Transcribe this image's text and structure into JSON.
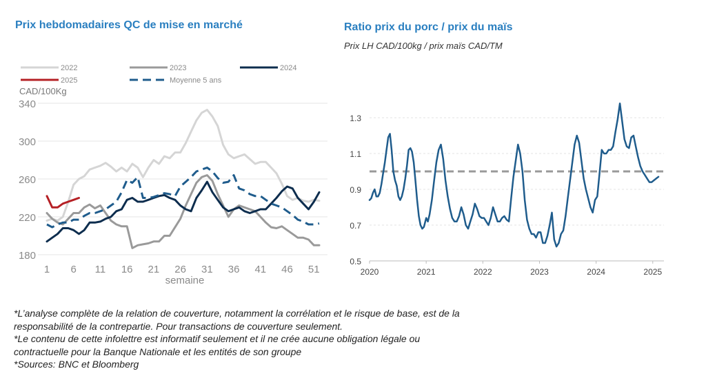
{
  "left": {
    "title": "Prix hebdomadaires QC de mise en marché",
    "chart_data": {
      "type": "line",
      "title": "Prix hebdomadaires QC de mise en marché",
      "ylabel": "CAD/100Kg",
      "xlabel": "semaine",
      "ylim": [
        180,
        340
      ],
      "yticks": [
        180,
        220,
        260,
        300,
        340
      ],
      "xlim": [
        1,
        52
      ],
      "xticks": [
        1,
        6,
        11,
        16,
        21,
        26,
        31,
        36,
        41,
        46,
        51
      ],
      "grid": true,
      "legend_position": "top",
      "series": [
        {
          "name": "2022",
          "color": "#d5d5d5",
          "style": "solid",
          "x": [
            1,
            2,
            3,
            4,
            5,
            6,
            7,
            8,
            9,
            10,
            11,
            12,
            13,
            14,
            15,
            16,
            17,
            18,
            19,
            20,
            21,
            22,
            23,
            24,
            25,
            26,
            27,
            28,
            29,
            30,
            31,
            32,
            33,
            34,
            35,
            36,
            37,
            38,
            39,
            40,
            41,
            42,
            43,
            44,
            45,
            46,
            47,
            48,
            49,
            50,
            51,
            52
          ],
          "values": [
            216,
            218,
            216,
            220,
            236,
            254,
            260,
            263,
            270,
            272,
            274,
            277,
            273,
            268,
            272,
            268,
            276,
            272,
            262,
            272,
            280,
            276,
            284,
            282,
            288,
            288,
            298,
            310,
            322,
            330,
            333,
            326,
            316,
            296,
            286,
            282,
            284,
            286,
            281,
            276,
            278,
            278,
            272,
            266,
            255,
            242,
            238,
            240,
            237,
            236,
            238,
            237
          ]
        },
        {
          "name": "2023",
          "color": "#9a9a9a",
          "style": "solid",
          "x": [
            1,
            2,
            3,
            4,
            5,
            6,
            7,
            8,
            9,
            10,
            11,
            12,
            13,
            14,
            15,
            16,
            17,
            18,
            19,
            20,
            21,
            22,
            23,
            24,
            25,
            26,
            27,
            28,
            29,
            30,
            31,
            32,
            33,
            34,
            35,
            36,
            37,
            38,
            39,
            40,
            41,
            42,
            43,
            44,
            45,
            46,
            47,
            48,
            49,
            50,
            51,
            52
          ],
          "values": [
            224,
            218,
            214,
            212,
            218,
            224,
            224,
            230,
            233,
            229,
            232,
            224,
            216,
            212,
            210,
            210,
            187,
            190,
            191,
            192,
            194,
            194,
            200,
            200,
            209,
            218,
            232,
            244,
            256,
            262,
            264,
            258,
            244,
            232,
            220,
            228,
            232,
            230,
            228,
            226,
            220,
            214,
            209,
            208,
            210,
            206,
            202,
            198,
            198,
            196,
            190,
            190
          ]
        },
        {
          "name": "2024",
          "color": "#0d2d4e",
          "style": "solid",
          "x": [
            1,
            2,
            3,
            4,
            5,
            6,
            7,
            8,
            9,
            10,
            11,
            12,
            13,
            14,
            15,
            16,
            17,
            18,
            19,
            20,
            21,
            22,
            23,
            24,
            25,
            26,
            27,
            28,
            29,
            30,
            31,
            32,
            33,
            34,
            35,
            36,
            37,
            38,
            39,
            40,
            41,
            42,
            43,
            44,
            45,
            46,
            47,
            48,
            49,
            50,
            51,
            52
          ],
          "values": [
            194,
            198,
            202,
            208,
            208,
            206,
            202,
            206,
            214,
            214,
            215,
            218,
            220,
            226,
            228,
            238,
            240,
            236,
            236,
            238,
            240,
            242,
            243,
            240,
            238,
            232,
            228,
            226,
            240,
            248,
            257,
            246,
            238,
            230,
            226,
            228,
            230,
            226,
            224,
            226,
            228,
            228,
            234,
            240,
            247,
            252,
            250,
            240,
            234,
            228,
            236,
            246
          ]
        },
        {
          "name": "2025",
          "color": "#b52025",
          "style": "solid",
          "x": [
            1,
            2,
            3,
            4,
            5,
            6,
            7
          ],
          "values": [
            242,
            230,
            230,
            234,
            236,
            238,
            240
          ]
        },
        {
          "name": "Moyenne 5 ans",
          "color": "#1f5c8c",
          "style": "dashed",
          "x": [
            1,
            2,
            3,
            4,
            5,
            6,
            7,
            8,
            9,
            10,
            11,
            12,
            13,
            14,
            15,
            16,
            17,
            18,
            19,
            20,
            21,
            22,
            23,
            24,
            25,
            26,
            27,
            28,
            29,
            30,
            31,
            32,
            33,
            34,
            35,
            36,
            37,
            38,
            39,
            40,
            41,
            42,
            43,
            44,
            45,
            46,
            47,
            48,
            49,
            50,
            51,
            52
          ],
          "values": [
            212,
            209,
            212,
            214,
            214,
            217,
            217,
            221,
            224,
            224,
            226,
            228,
            232,
            236,
            246,
            259,
            256,
            262,
            240,
            240,
            241,
            243,
            245,
            244,
            242,
            252,
            257,
            262,
            268,
            270,
            272,
            268,
            261,
            256,
            257,
            264,
            250,
            248,
            244,
            242,
            242,
            238,
            234,
            232,
            230,
            226,
            222,
            217,
            215,
            212,
            212,
            213
          ]
        }
      ]
    }
  },
  "right": {
    "title": "Ratio prix du porc / prix du maïs",
    "subtitle": "Prix LH CAD/100kg / prix maïs CAD/TM",
    "chart_data": {
      "type": "line",
      "title": "Ratio prix du porc / prix du maïs",
      "subtitle": "Prix LH CAD/100kg / prix maïs CAD/TM",
      "ylim": [
        0.5,
        1.4
      ],
      "yticks": [
        0.5,
        0.7,
        0.9,
        1.1,
        1.3
      ],
      "xlim": [
        2020.0,
        2025.1
      ],
      "xticks": [
        "2020",
        "2021",
        "2022",
        "2023",
        "2024",
        "2025"
      ],
      "grid": true,
      "reference_line": {
        "value": 1.0,
        "color": "#999999",
        "style": "dashed"
      },
      "series": [
        {
          "color": "#1f5c8c",
          "x": [
            2020.0,
            2020.03,
            2020.06,
            2020.09,
            2020.12,
            2020.15,
            2020.18,
            2020.21,
            2020.24,
            2020.27,
            2020.3,
            2020.33,
            2020.36,
            2020.39,
            2020.42,
            2020.45,
            2020.48,
            2020.51,
            2020.54,
            2020.57,
            2020.6,
            2020.63,
            2020.66,
            2020.69,
            2020.72,
            2020.75,
            2020.78,
            2020.81,
            2020.84,
            2020.87,
            2020.9,
            2020.93,
            2020.96,
            2021.0,
            2021.03,
            2021.06,
            2021.1,
            2021.14,
            2021.18,
            2021.22,
            2021.26,
            2021.3,
            2021.34,
            2021.38,
            2021.42,
            2021.46,
            2021.5,
            2021.54,
            2021.58,
            2021.62,
            2021.66,
            2021.7,
            2021.74,
            2021.78,
            2021.82,
            2021.86,
            2021.9,
            2021.94,
            2021.98,
            2022.02,
            2022.06,
            2022.1,
            2022.14,
            2022.18,
            2022.22,
            2022.26,
            2022.3,
            2022.34,
            2022.38,
            2022.42,
            2022.46,
            2022.5,
            2022.54,
            2022.58,
            2022.62,
            2022.66,
            2022.7,
            2022.74,
            2022.78,
            2022.82,
            2022.86,
            2022.9,
            2022.94,
            2022.98,
            2023.02,
            2023.06,
            2023.1,
            2023.14,
            2023.18,
            2023.22,
            2023.26,
            2023.3,
            2023.34,
            2023.38,
            2023.42,
            2023.46,
            2023.5,
            2023.54,
            2023.58,
            2023.62,
            2023.66,
            2023.7,
            2023.74,
            2023.78,
            2023.82,
            2023.86,
            2023.9,
            2023.94,
            2023.98,
            2024.02,
            2024.06,
            2024.1,
            2024.14,
            2024.18,
            2024.22,
            2024.26,
            2024.3,
            2024.34,
            2024.38,
            2024.42,
            2024.46,
            2024.5,
            2024.54,
            2024.58,
            2024.62,
            2024.66,
            2024.7,
            2024.74,
            2024.78,
            2024.82,
            2024.86,
            2024.9,
            2024.94,
            2024.98,
            2025.02,
            2025.06,
            2025.1
          ],
          "values": [
            0.84,
            0.85,
            0.88,
            0.9,
            0.86,
            0.86,
            0.88,
            0.93,
            0.99,
            1.05,
            1.12,
            1.19,
            1.21,
            1.12,
            1.0,
            0.95,
            0.92,
            0.86,
            0.84,
            0.86,
            0.9,
            0.96,
            1.03,
            1.12,
            1.13,
            1.11,
            1.05,
            0.95,
            0.84,
            0.75,
            0.7,
            0.68,
            0.69,
            0.74,
            0.72,
            0.76,
            0.84,
            0.95,
            1.05,
            1.12,
            1.15,
            1.07,
            0.95,
            0.86,
            0.79,
            0.74,
            0.72,
            0.72,
            0.75,
            0.8,
            0.76,
            0.7,
            0.68,
            0.72,
            0.76,
            0.82,
            0.79,
            0.75,
            0.74,
            0.74,
            0.72,
            0.7,
            0.74,
            0.8,
            0.76,
            0.72,
            0.72,
            0.74,
            0.75,
            0.73,
            0.72,
            0.85,
            0.97,
            1.06,
            1.15,
            1.1,
            1.0,
            0.84,
            0.73,
            0.68,
            0.65,
            0.65,
            0.63,
            0.66,
            0.66,
            0.6,
            0.6,
            0.64,
            0.7,
            0.77,
            0.62,
            0.58,
            0.6,
            0.65,
            0.67,
            0.75,
            0.85,
            0.95,
            1.05,
            1.15,
            1.2,
            1.16,
            1.06,
            0.96,
            0.9,
            0.85,
            0.8,
            0.77,
            0.84,
            0.86,
            0.99,
            1.12,
            1.1,
            1.1,
            1.12,
            1.12,
            1.14,
            1.22,
            1.29,
            1.38,
            1.28,
            1.18,
            1.14,
            1.13,
            1.19,
            1.2,
            1.14,
            1.08,
            1.03,
            1.0,
            0.98,
            0.96,
            0.94,
            0.94,
            0.95,
            0.96,
            0.97
          ]
        }
      ]
    }
  },
  "notes": [
    "*L’analyse complète de la relation de couverture, notamment la corrélation et le risque de base, est de la",
    "responsabilité de la contrepartie. Pour transactions de couverture seulement.",
    "*Le contenu de cette infolettre est informatif seulement et il ne crée aucune obligation légale ou",
    "contractuelle pour la Banque Nationale et les entités de son groupe",
    "*Sources: BNC et Bloomberg"
  ]
}
